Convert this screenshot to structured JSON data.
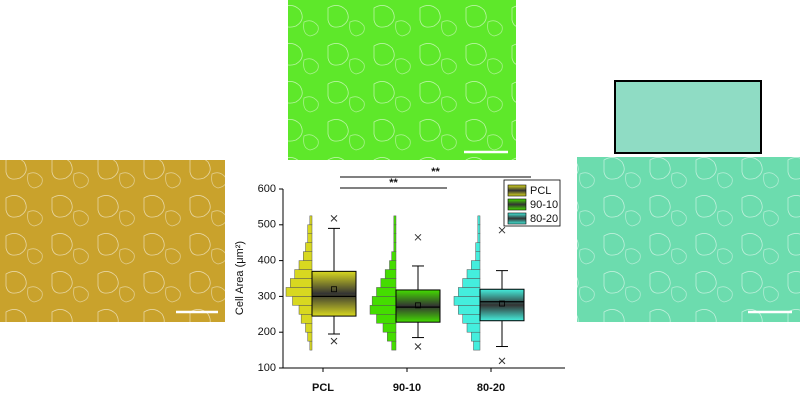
{
  "chart_data": {
    "type": "box",
    "y_label": "Cell Area (μm²)",
    "categories": [
      "PCL",
      "90-10",
      "80-20"
    ],
    "ylim": [
      100,
      600
    ],
    "yticks": [
      100,
      200,
      300,
      400,
      500,
      600
    ],
    "bins": [
      150,
      175,
      200,
      225,
      250,
      275,
      300,
      325,
      350,
      375,
      400,
      425,
      450,
      475,
      500,
      525
    ],
    "series": [
      {
        "name": "PCL",
        "color": "#d8d820",
        "whisker_low": 195,
        "q1": 245,
        "median": 300,
        "mean": 320,
        "q3": 370,
        "whisker_high": 490,
        "outliers": [
          518,
          175
        ],
        "hist_counts": [
          1,
          2,
          3,
          5,
          6,
          9,
          12,
          10,
          8,
          6,
          4,
          3,
          2,
          2,
          1
        ]
      },
      {
        "name": "90-10",
        "color": "#44dd00",
        "whisker_low": 185,
        "q1": 228,
        "median": 270,
        "mean": 275,
        "q3": 318,
        "whisker_high": 385,
        "outliers": [
          465,
          160
        ],
        "hist_counts": [
          2,
          4,
          6,
          9,
          12,
          11,
          9,
          7,
          5,
          3,
          2,
          1,
          1,
          1,
          1
        ]
      },
      {
        "name": "80-20",
        "color": "#44eedd",
        "whisker_low": 160,
        "q1": 232,
        "median": 285,
        "mean": 280,
        "q3": 320,
        "whisker_high": 372,
        "outliers": [
          485,
          120
        ],
        "hist_counts": [
          3,
          4,
          6,
          8,
          10,
          12,
          10,
          8,
          6,
          4,
          2,
          2,
          1,
          1,
          1
        ]
      }
    ],
    "annotations": [
      {
        "text": "**",
        "between": [
          0,
          1
        ]
      },
      {
        "text": "**",
        "between": [
          0,
          2
        ]
      }
    ],
    "legend": "upper right"
  }
}
